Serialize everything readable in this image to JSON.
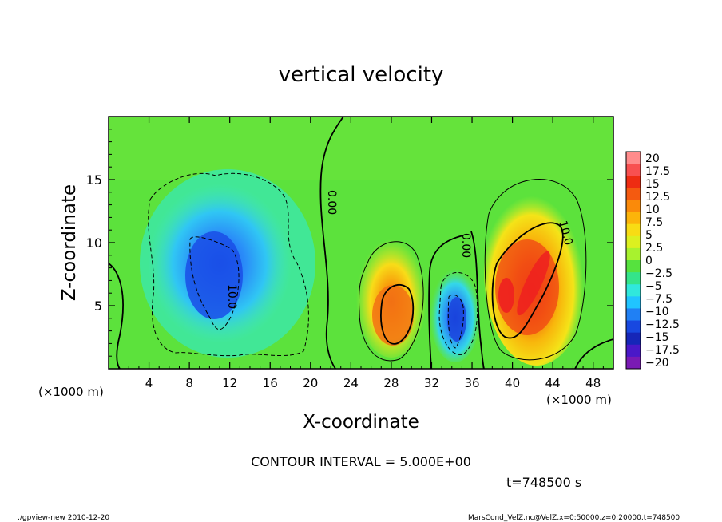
{
  "chart_data": {
    "type": "heatmap",
    "title": "vertical velocity",
    "xlabel": "X-coordinate",
    "ylabel": "Z-coordinate",
    "x_unit": "(×1000 m)",
    "y_unit": "(×1000 m)",
    "xlim": [
      0,
      50
    ],
    "ylim": [
      0,
      20
    ],
    "x_ticks": [
      "4",
      "8",
      "12",
      "16",
      "20",
      "24",
      "28",
      "32",
      "36",
      "40",
      "44",
      "48"
    ],
    "x_tick_values": [
      4,
      8,
      12,
      16,
      20,
      24,
      28,
      32,
      36,
      40,
      44,
      48
    ],
    "y_ticks": [
      "5",
      "10",
      "15"
    ],
    "y_tick_values": [
      5,
      10,
      15
    ],
    "colorbar": {
      "labels": [
        "20",
        "17.5",
        "15",
        "12.5",
        "10",
        "7.5",
        "5",
        "2.5",
        "0",
        "−2.5",
        "−5",
        "−7.5",
        "−10",
        "−12.5",
        "−15",
        "−17.5",
        "−20"
      ],
      "colors": [
        "#ff8c8c",
        "#f85050",
        "#ee2c12",
        "#f45a10",
        "#fa8a0a",
        "#fcb40a",
        "#f8dc14",
        "#dcf020",
        "#a8f22e",
        "#56e23e",
        "#34e48a",
        "#30e8dc",
        "#20c4ff",
        "#2080f4",
        "#1848e0",
        "#1626b8",
        "#4a18c8",
        "#7a1ab4"
      ]
    },
    "contour_labels": [
      "0.00",
      "0.00",
      "10.0",
      "10.0"
    ],
    "features": [
      {
        "sign": "negative",
        "x": [
          7,
          19
        ],
        "z": [
          1,
          16
        ],
        "min": -12.5
      },
      {
        "sign": "positive",
        "x": [
          25,
          31
        ],
        "z": [
          1,
          10
        ],
        "max": 12.5
      },
      {
        "sign": "negative",
        "x": [
          32.5,
          36
        ],
        "z": [
          1,
          7.5
        ],
        "min": -12.5
      },
      {
        "sign": "positive",
        "x": [
          38,
          47
        ],
        "z": [
          1,
          15
        ],
        "max": 17.5
      }
    ],
    "contour_interval": "CONTOUR INTERVAL = 5.000E+00",
    "time": "t=748500 s"
  },
  "footer": {
    "left": "./gpview-new 2010-12-20",
    "right": "MarsCond_VelZ.nc@VelZ,x=0:50000,z=0:20000,t=748500"
  }
}
